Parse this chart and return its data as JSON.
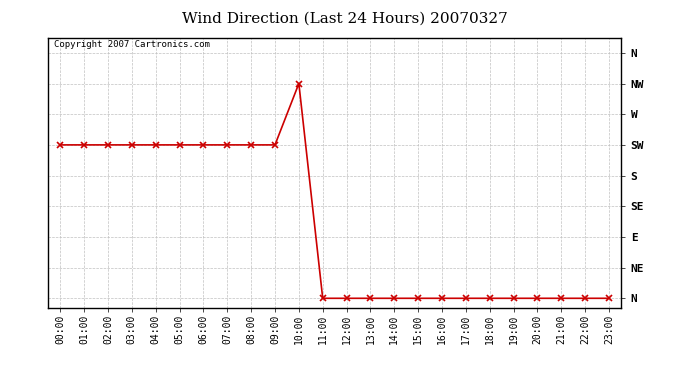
{
  "title": "Wind Direction (Last 24 Hours) 20070327",
  "copyright_text": "Copyright 2007 Cartronics.com",
  "line_color": "#cc0000",
  "marker_color": "#cc0000",
  "background_color": "#ffffff",
  "plot_bg_color": "#ffffff",
  "grid_color": "#c0c0c0",
  "ytick_labels": [
    "N",
    "NW",
    "W",
    "SW",
    "S",
    "SE",
    "E",
    "NE",
    "N"
  ],
  "ytick_values": [
    8,
    7,
    6,
    5,
    4,
    3,
    2,
    1,
    0
  ],
  "hours": [
    0,
    1,
    2,
    3,
    4,
    5,
    6,
    7,
    8,
    9,
    10,
    11,
    12,
    13,
    14,
    15,
    16,
    17,
    18,
    19,
    20,
    21,
    22,
    23
  ],
  "wind_values": [
    5,
    5,
    5,
    5,
    5,
    5,
    5,
    5,
    5,
    5,
    7,
    0,
    0,
    0,
    0,
    0,
    0,
    0,
    0,
    0,
    0,
    0,
    0,
    0
  ],
  "xlim": [
    -0.5,
    23.5
  ],
  "ylim": [
    -0.3,
    8.5
  ]
}
